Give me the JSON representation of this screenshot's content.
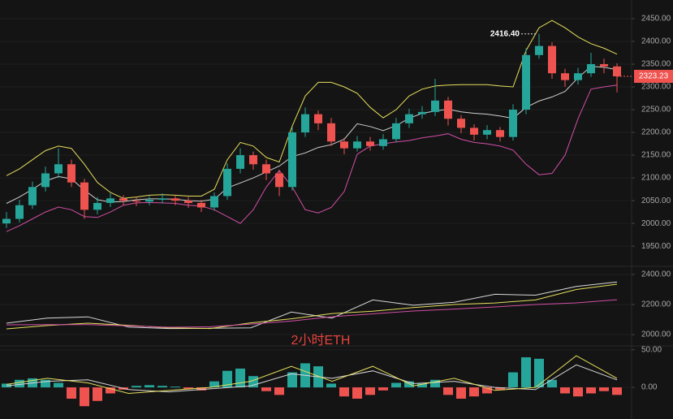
{
  "chart_data": [
    {
      "type": "candlestick",
      "open": [
        2000,
        2010,
        2040,
        2080,
        2110,
        2130,
        2090,
        2030,
        2045,
        2055,
        2050,
        2048,
        2052,
        2055,
        2050,
        2045,
        2035,
        2060,
        2120,
        2150,
        2130,
        2110,
        2080,
        2200,
        2240,
        2220,
        2180,
        2165,
        2180,
        2170,
        2185,
        2220,
        2240,
        2245,
        2270,
        2230,
        2210,
        2195,
        2205,
        2190,
        2250,
        2370,
        2390,
        2330,
        2315,
        2330,
        2350,
        2345
      ],
      "high": [
        2025,
        2052,
        2092,
        2125,
        2165,
        2140,
        2098,
        2058,
        2066,
        2062,
        2058,
        2060,
        2066,
        2062,
        2058,
        2052,
        2068,
        2132,
        2165,
        2158,
        2140,
        2118,
        2212,
        2255,
        2248,
        2232,
        2188,
        2192,
        2190,
        2196,
        2232,
        2252,
        2258,
        2318,
        2278,
        2238,
        2218,
        2216,
        2212,
        2262,
        2385,
        2416.4,
        2398,
        2340,
        2342,
        2375,
        2362,
        2352
      ],
      "low": [
        1990,
        2002,
        2032,
        2070,
        2100,
        2080,
        2010,
        2020,
        2036,
        2040,
        2038,
        2040,
        2044,
        2040,
        2034,
        2025,
        2028,
        2052,
        2110,
        2118,
        2095,
        2060,
        2072,
        2190,
        2205,
        2170,
        2152,
        2158,
        2160,
        2162,
        2178,
        2210,
        2230,
        2236,
        2215,
        2198,
        2182,
        2185,
        2180,
        2182,
        2240,
        2362,
        2318,
        2300,
        2305,
        2322,
        2330,
        2288
      ],
      "close": [
        2010,
        2040,
        2080,
        2110,
        2130,
        2090,
        2030,
        2045,
        2055,
        2050,
        2048,
        2052,
        2055,
        2050,
        2045,
        2035,
        2060,
        2120,
        2150,
        2130,
        2110,
        2080,
        2200,
        2240,
        2220,
        2180,
        2165,
        2180,
        2170,
        2185,
        2220,
        2240,
        2245,
        2270,
        2230,
        2210,
        2195,
        2205,
        2190,
        2250,
        2370,
        2390,
        2330,
        2315,
        2330,
        2350,
        2345,
        2323.23
      ],
      "up_color": "#26a69a",
      "down_color": "#ef5350",
      "series": [
        {
          "color": "#e6df5c",
          "values": [
            2105,
            2120,
            2140,
            2160,
            2170,
            2165,
            2130,
            2090,
            2068,
            2055,
            2058,
            2062,
            2063,
            2062,
            2060,
            2060,
            2075,
            2140,
            2178,
            2170,
            2145,
            2135,
            2214,
            2280,
            2310,
            2310,
            2300,
            2286,
            2255,
            2232,
            2250,
            2280,
            2295,
            2302,
            2304,
            2305,
            2305,
            2305,
            2302,
            2300,
            2380,
            2430,
            2446,
            2430,
            2410,
            2395,
            2385,
            2372
          ]
        },
        {
          "color": "#cfcfcf",
          "values": [
            2044,
            2058,
            2075,
            2093,
            2103,
            2098,
            2073,
            2052,
            2047,
            2048,
            2052,
            2054,
            2054,
            2053,
            2050,
            2049,
            2053,
            2078,
            2089,
            2100,
            2113,
            2126,
            2147,
            2155,
            2167,
            2173,
            2185,
            2219,
            2213,
            2204,
            2215,
            2231,
            2242,
            2247,
            2251,
            2245,
            2242,
            2240,
            2236,
            2231,
            2255,
            2269,
            2278,
            2290,
            2320,
            2345,
            2343,
            2338
          ]
        },
        {
          "color": "#d24fa6",
          "values": [
            1982,
            1995,
            2010,
            2025,
            2036,
            2030,
            2015,
            2013,
            2025,
            2040,
            2045,
            2046,
            2045,
            2044,
            2040,
            2038,
            2030,
            2015,
            2000,
            2030,
            2080,
            2116,
            2080,
            2030,
            2023,
            2035,
            2070,
            2152,
            2170,
            2175,
            2179,
            2182,
            2188,
            2192,
            2197,
            2185,
            2178,
            2175,
            2170,
            2161,
            2130,
            2107,
            2110,
            2150,
            2230,
            2295,
            2300,
            2304
          ]
        }
      ],
      "ylim": [
        1911,
        2491
      ],
      "yticks": [
        {
          "value": 1950,
          "label": "1950.00"
        },
        {
          "value": 2000,
          "label": "2000.00"
        },
        {
          "value": 2050,
          "label": "2050.00"
        },
        {
          "value": 2100,
          "label": "2100.00"
        },
        {
          "value": 2150,
          "label": "2150.00"
        },
        {
          "value": 2200,
          "label": "2200.00"
        },
        {
          "value": 2250,
          "label": "2250.00"
        },
        {
          "value": 2300,
          "label": "2300.00"
        },
        {
          "value": 2350,
          "label": "2350.00"
        },
        {
          "value": 2400,
          "label": "2400.00"
        },
        {
          "value": 2450,
          "label": "2450.00"
        }
      ],
      "max_label": "2416.40",
      "grid": true
    },
    {
      "type": "line",
      "series": [
        {
          "color": "#d8d8d8",
          "values": [
            2076,
            2110,
            2118,
            2050,
            2040,
            2042,
            2045,
            2150,
            2110,
            2230,
            2195,
            2215,
            2268,
            2262,
            2320,
            2350
          ]
        },
        {
          "color": "#e6df5c",
          "values": [
            2038,
            2060,
            2076,
            2062,
            2045,
            2040,
            2078,
            2105,
            2140,
            2155,
            2180,
            2200,
            2210,
            2230,
            2300,
            2335
          ]
        },
        {
          "color": "#d24fa6",
          "values": [
            2065,
            2066,
            2066,
            2058,
            2049,
            2052,
            2070,
            2090,
            2119,
            2138,
            2157,
            2170,
            2184,
            2200,
            2211,
            2232
          ]
        }
      ],
      "ylim": [
        1930,
        2443
      ],
      "yticks": [
        {
          "value": 2000,
          "label": "2000.00"
        },
        {
          "value": 2200,
          "label": "2200.00"
        },
        {
          "value": 2400,
          "label": "2400.00"
        }
      ],
      "annotation": "2小时ETH",
      "grid": true
    },
    {
      "type": "macd",
      "values": [
        5,
        10,
        12,
        10,
        6,
        -15,
        -25,
        -18,
        -8,
        -3,
        2,
        3,
        2,
        1,
        -2,
        -4,
        8,
        22,
        25,
        15,
        -5,
        -10,
        20,
        32,
        28,
        5,
        -12,
        -15,
        -10,
        -4,
        6,
        8,
        5,
        10,
        -10,
        -15,
        -12,
        -8,
        -3,
        20,
        40,
        38,
        10,
        -8,
        -12,
        -8,
        -5,
        -10
      ],
      "up_color": "#26a69a",
      "down_color": "#ef5350",
      "series": [
        {
          "color": "#d8d8d8",
          "values": [
            2,
            8,
            10,
            -3,
            -6,
            -2,
            2,
            18,
            12,
            22,
            5,
            8,
            0,
            -3,
            30,
            10
          ]
        },
        {
          "color": "#e6df5c",
          "values": [
            4,
            12,
            6,
            -8,
            -4,
            0,
            8,
            28,
            8,
            28,
            2,
            12,
            -4,
            0,
            42,
            12
          ]
        }
      ],
      "ylim": [
        -42,
        54
      ],
      "yticks": [
        {
          "value": 0,
          "label": "0.00"
        },
        {
          "value": 50,
          "label": "50.00"
        }
      ],
      "grid": true
    }
  ]
}
